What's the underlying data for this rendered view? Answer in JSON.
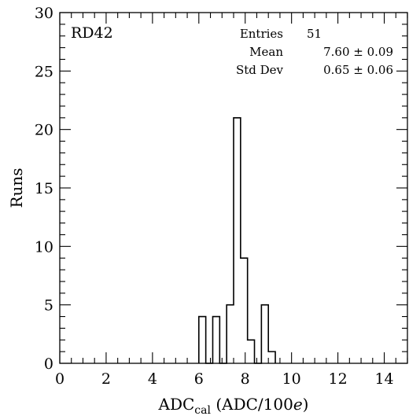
{
  "chart_data": {
    "type": "histogram",
    "title": "",
    "tag": "RD42",
    "xlabel_main": "ADC",
    "xlabel_sub": "cal",
    "xlabel_rest": " (ADC/100",
    "xlabel_italic": "e",
    "xlabel_close": ")",
    "ylabel": "Runs",
    "xlim": [
      0,
      15
    ],
    "ylim": [
      0,
      30
    ],
    "x_ticks": [
      0,
      2,
      4,
      6,
      8,
      10,
      12,
      14
    ],
    "y_ticks": [
      0,
      5,
      10,
      15,
      20,
      25,
      30
    ],
    "bin_width": 0.3,
    "bins": [
      {
        "x_low": 6.0,
        "x_high": 6.3,
        "count": 4
      },
      {
        "x_low": 6.3,
        "x_high": 6.6,
        "count": 0
      },
      {
        "x_low": 6.6,
        "x_high": 6.9,
        "count": 4
      },
      {
        "x_low": 6.9,
        "x_high": 7.2,
        "count": 0
      },
      {
        "x_low": 7.2,
        "x_high": 7.5,
        "count": 5
      },
      {
        "x_low": 7.5,
        "x_high": 7.8,
        "count": 21
      },
      {
        "x_low": 7.8,
        "x_high": 8.1,
        "count": 9
      },
      {
        "x_low": 8.1,
        "x_high": 8.4,
        "count": 2
      },
      {
        "x_low": 8.4,
        "x_high": 8.7,
        "count": 0
      },
      {
        "x_low": 8.7,
        "x_high": 9.0,
        "count": 5
      },
      {
        "x_low": 9.0,
        "x_high": 9.3,
        "count": 1
      }
    ],
    "stats": [
      {
        "label": "Entries",
        "value": "51"
      },
      {
        "label": "Mean",
        "value": "7.60 ± 0.09"
      },
      {
        "label": "Std Dev",
        "value": "0.65 ± 0.06"
      }
    ],
    "grid": false,
    "legend": "none"
  }
}
